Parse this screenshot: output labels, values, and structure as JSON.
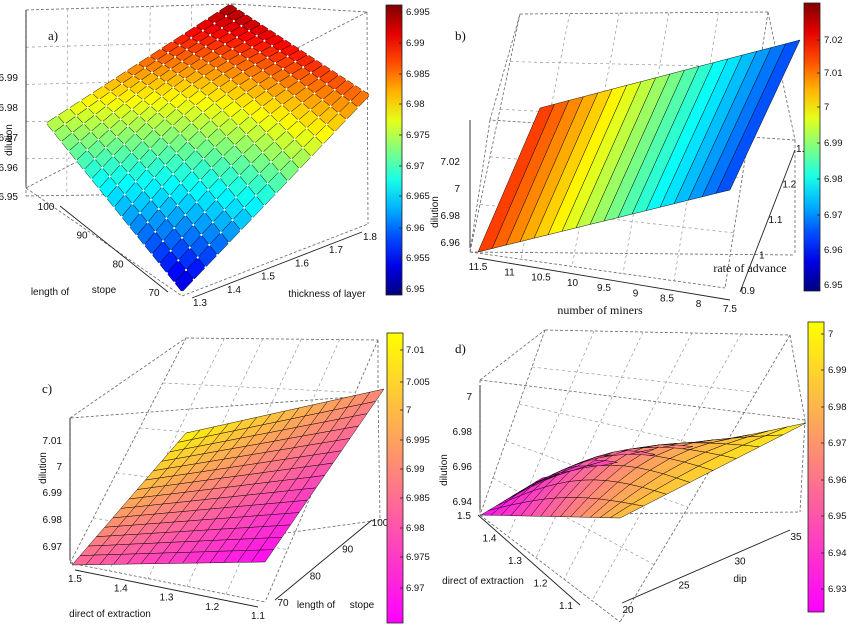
{
  "chart_data": [
    {
      "type": "surface",
      "label": "a)",
      "colormap": "jet",
      "xlabel": "thickness of layer",
      "ylabel": "length of stope",
      "zlabel": "dilution",
      "x_ticks": [
        "1.3",
        "1.4",
        "1.5",
        "1.6",
        "1.7",
        "1.8"
      ],
      "y_ticks": [
        "70",
        "80",
        "90",
        "100"
      ],
      "z_ticks": [
        "6.95",
        "6.96",
        "6.97",
        "6.98",
        "6.99"
      ],
      "colorbar_ticks": [
        "6.995",
        "6.99",
        "6.985",
        "6.98",
        "6.975",
        "6.97",
        "6.965",
        "6.96",
        "6.955",
        "6.95"
      ],
      "xlim": [
        1.3,
        1.8
      ],
      "ylim": [
        65,
        105
      ],
      "zlim": [
        6.94,
        6.998
      ],
      "x": [
        1.3,
        1.8
      ],
      "y": [
        65,
        105
      ],
      "z_corners": {
        "x_min_y_min": 6.944,
        "x_max_y_min": 6.985,
        "x_min_y_max": 6.972,
        "x_max_y_max": 6.996
      },
      "grid": "on"
    },
    {
      "type": "surface",
      "label": "b)",
      "colormap": "jet",
      "xlabel": "number of miners",
      "ylabel": "rate of advance",
      "zlabel": "dilution",
      "x_ticks": [
        "11.5",
        "11",
        "10.5",
        "10",
        "9.5",
        "9",
        "8.5",
        "8",
        "7.5"
      ],
      "y_ticks": [
        "0.9",
        "1",
        "1.1",
        "1.2",
        "1.3"
      ],
      "z_ticks": [
        "6.96",
        "6.98",
        "7",
        "7.02"
      ],
      "colorbar_ticks": [
        "7.02",
        "7.01",
        "7",
        "6.99",
        "6.98",
        "6.97",
        "6.96",
        "6.95"
      ],
      "xlim": [
        7,
        12
      ],
      "ylim": [
        0.85,
        1.4
      ],
      "zlim": [
        6.95,
        7.03
      ],
      "x": [
        7,
        12
      ],
      "y": [
        0.85,
        1.4
      ],
      "z_corners": {
        "x_min_y_min": 7.005,
        "x_max_y_min": 6.955,
        "x_min_y_max": 7.028,
        "x_max_y_max": 6.975
      },
      "grid": "on"
    },
    {
      "type": "surface",
      "label": "c)",
      "colormap": "spring",
      "xlabel": "direct of extraction",
      "ylabel": "length of stope",
      "zlabel": "dilution",
      "x_ticks": [
        "1.5",
        "1.4",
        "1.3",
        "1.2",
        "1.1"
      ],
      "y_ticks": [
        "70",
        "80",
        "90",
        "100"
      ],
      "z_ticks": [
        "6.97",
        "6.98",
        "6.99",
        "7",
        "7.01"
      ],
      "colorbar_ticks": [
        "7.01",
        "7.005",
        "7",
        "6.995",
        "6.99",
        "6.985",
        "6.98",
        "6.975",
        "6.97"
      ],
      "xlim": [
        1.05,
        1.6
      ],
      "ylim": [
        65,
        110
      ],
      "zlim": [
        6.965,
        7.015
      ],
      "x": [
        1.05,
        1.6
      ],
      "y": [
        65,
        110
      ],
      "z_corners": {
        "x_min_y_min": 6.985,
        "x_max_y_min": 6.967,
        "x_min_y_max": 7.013,
        "x_max_y_max": 6.992
      },
      "grid": "on"
    },
    {
      "type": "surface",
      "label": "d)",
      "colormap": "spring",
      "xlabel": "dip",
      "ylabel": "direct of extraction",
      "zlabel": "dilution",
      "x_ticks": [
        "20",
        "25",
        "30",
        "35"
      ],
      "y_ticks": [
        "1.1",
        "1.2",
        "1.3",
        "1.4",
        "1.5"
      ],
      "z_ticks": [
        "6.94",
        "6.96",
        "6.98",
        "7"
      ],
      "colorbar_ticks": [
        "7",
        "6.99",
        "6.98",
        "6.97",
        "6.96",
        "6.95",
        "6.94",
        "6.93"
      ],
      "xlim": [
        20,
        40
      ],
      "ylim": [
        1.05,
        1.6
      ],
      "zlim": [
        6.925,
        7.005
      ],
      "x": [
        20,
        40
      ],
      "y": [
        1.05,
        1.6
      ],
      "z_corners": {
        "x_min_y_min": 6.93,
        "x_max_y_min": 6.985,
        "x_min_y_max": 6.93,
        "x_max_y_max": 7.0
      },
      "grid": "on"
    }
  ]
}
